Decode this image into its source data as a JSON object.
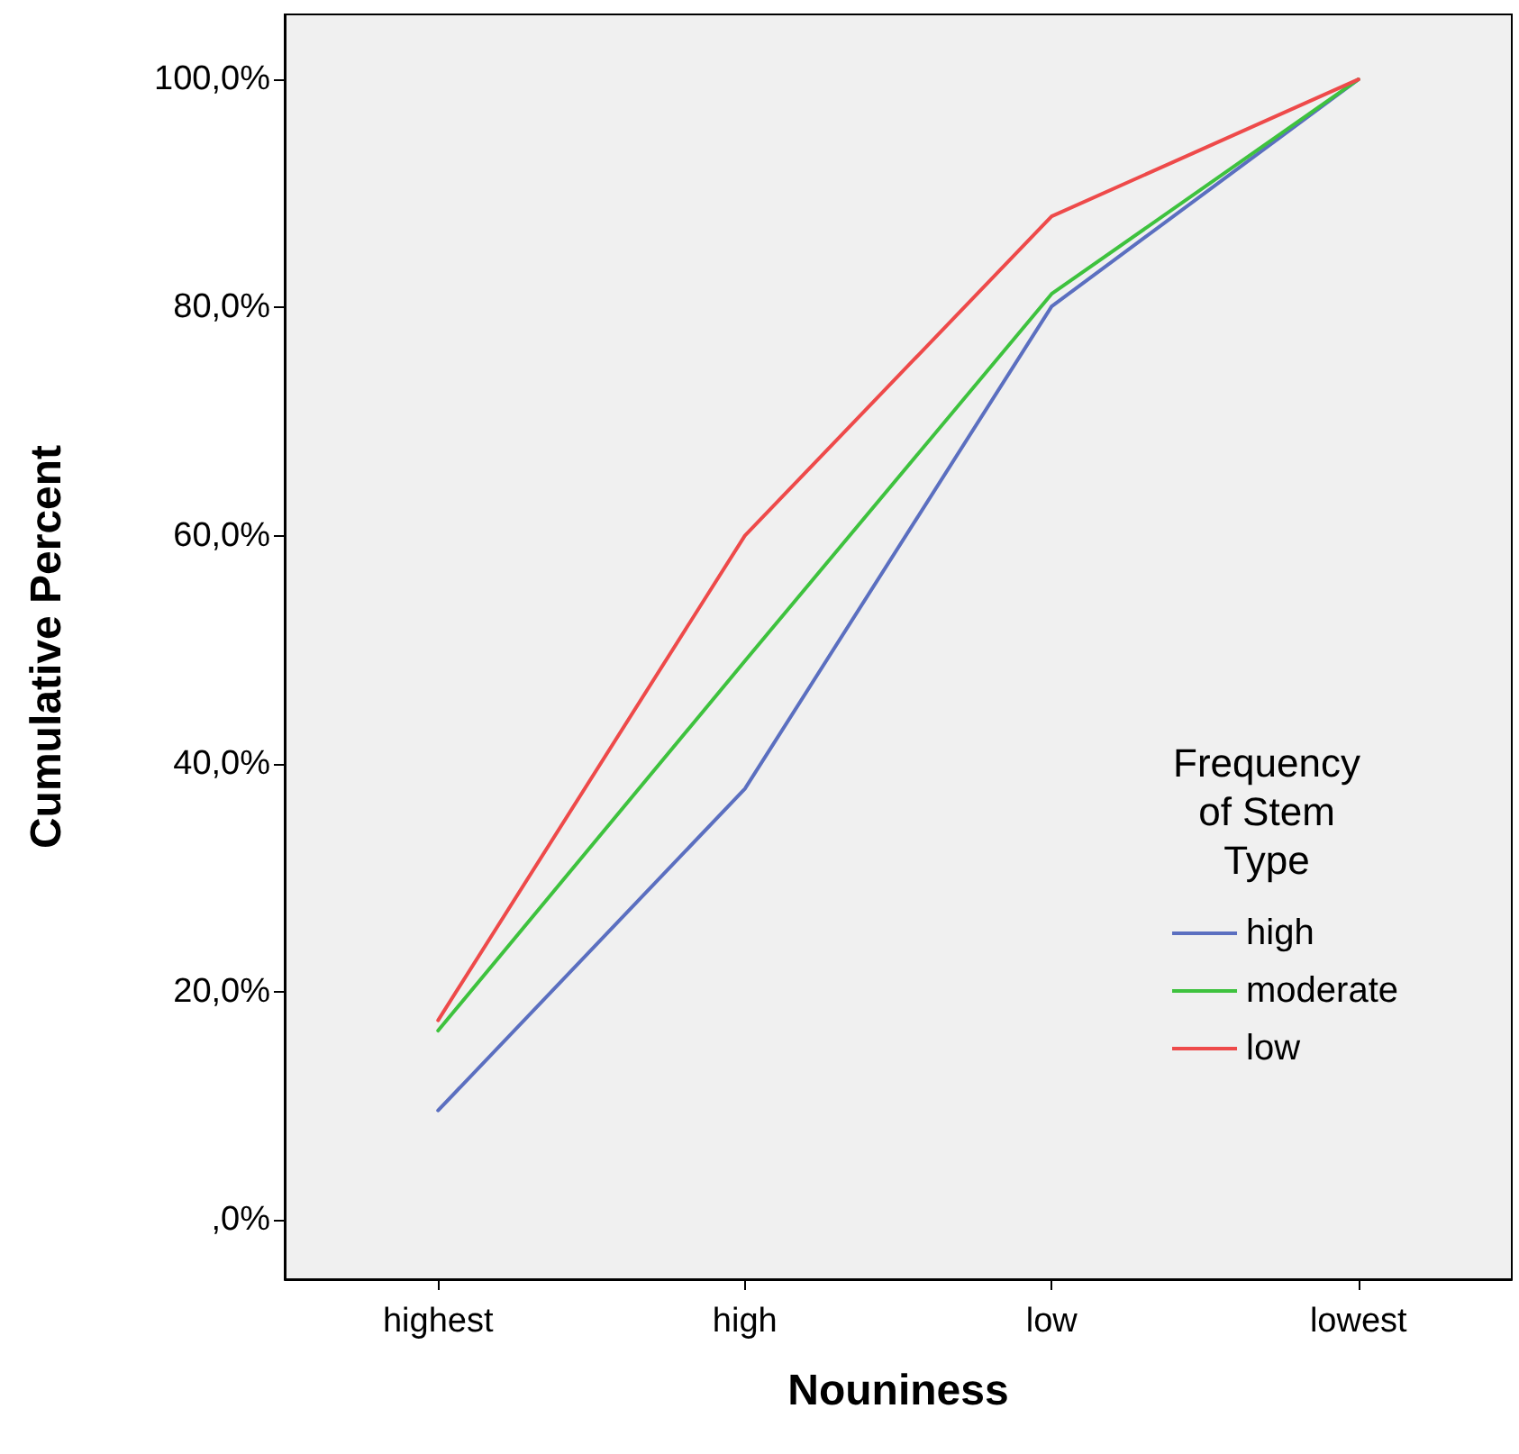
{
  "chart_data": {
    "type": "line",
    "xlabel": "Nouniness",
    "ylabel": "Cumulative Percent",
    "legend_title": "Frequency of Stem Type",
    "categories": [
      "highest",
      "high",
      "low",
      "lowest"
    ],
    "series": [
      {
        "name": "high",
        "color": "#5b6fc0",
        "values": [
          9.6,
          37.8,
          80.1,
          100
        ]
      },
      {
        "name": "moderate",
        "color": "#3ec23e",
        "values": [
          16.6,
          49,
          81.2,
          100
        ]
      },
      {
        "name": "low",
        "color": "#ee4a4a",
        "values": [
          17.5,
          60,
          88,
          100
        ]
      }
    ],
    "ylim": [
      -5.2,
      105.7
    ],
    "yticks": [
      {
        "value": 0,
        "label": ",0%"
      },
      {
        "value": 20,
        "label": "20,0%"
      },
      {
        "value": 40,
        "label": "40,0%"
      },
      {
        "value": 60,
        "label": "60,0%"
      },
      {
        "value": 80,
        "label": "80,0%"
      },
      {
        "value": 100,
        "label": "100,0%"
      }
    ],
    "grid": false,
    "legend": "bottom right",
    "marker": "none",
    "line_style": "solid"
  }
}
